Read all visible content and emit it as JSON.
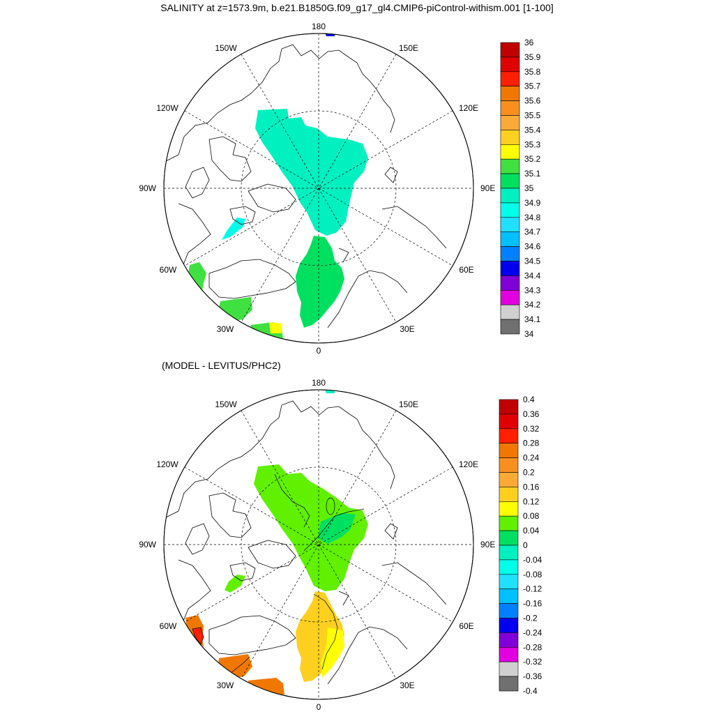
{
  "title": "SALINITY at z=1573.9m, b.e21.B1850G.f09_g17_gl4.CMIP6-piControl-withism.001 [1-100]",
  "subtitle": "(MODEL - LEVITUS/PHC2)",
  "lon_labels": {
    "top": "180",
    "bottom": "0",
    "left": "90W",
    "right": "90E",
    "upper_left_a": "150W",
    "upper_left_b": "120W",
    "upper_right_a": "150E",
    "upper_right_b": "120E",
    "lower_left_a": "60W",
    "lower_left_b": "30W",
    "lower_right_a": "60E",
    "lower_right_b": "30E"
  },
  "panels": [
    {
      "name": "salinity",
      "colorbar": {
        "labels": [
          "36",
          "35.9",
          "35.8",
          "35.7",
          "35.6",
          "35.5",
          "35.4",
          "35.3",
          "35.2",
          "35.1",
          "35",
          "34.9",
          "34.8",
          "34.7",
          "34.6",
          "34.5",
          "34.4",
          "34.3",
          "34.2",
          "34.1",
          "34"
        ],
        "colors": [
          "#c00000",
          "#e00000",
          "#ff2000",
          "#f07800",
          "#f89020",
          "#fbaa38",
          "#fdd020",
          "#ffff00",
          "#40e040",
          "#00e060",
          "#00f0c0",
          "#00ffe8",
          "#20e0ff",
          "#00c0ff",
          "#0080ff",
          "#0000ee",
          "#8000d8",
          "#e000e0",
          "#d0d0d0",
          "#707070"
        ]
      }
    },
    {
      "name": "difference",
      "colorbar": {
        "labels": [
          "0.4",
          "0.36",
          "0.32",
          "0.28",
          "0.24",
          "0.2",
          "0.16",
          "0.12",
          "0.08",
          "0.04",
          "0",
          "-0.04",
          "-0.08",
          "-0.12",
          "-0.16",
          "-0.2",
          "-0.24",
          "-0.28",
          "-0.32",
          "-0.36",
          "-0.4"
        ],
        "colors": [
          "#c00000",
          "#e00000",
          "#ff2000",
          "#f07800",
          "#f89020",
          "#fbaa38",
          "#fdd020",
          "#ffff00",
          "#60f000",
          "#00e060",
          "#00f0c0",
          "#00ffe8",
          "#20e0ff",
          "#00c0ff",
          "#0080ff",
          "#0000ee",
          "#8000d8",
          "#e000e0",
          "#d0d0d0",
          "#707070"
        ]
      }
    }
  ]
}
